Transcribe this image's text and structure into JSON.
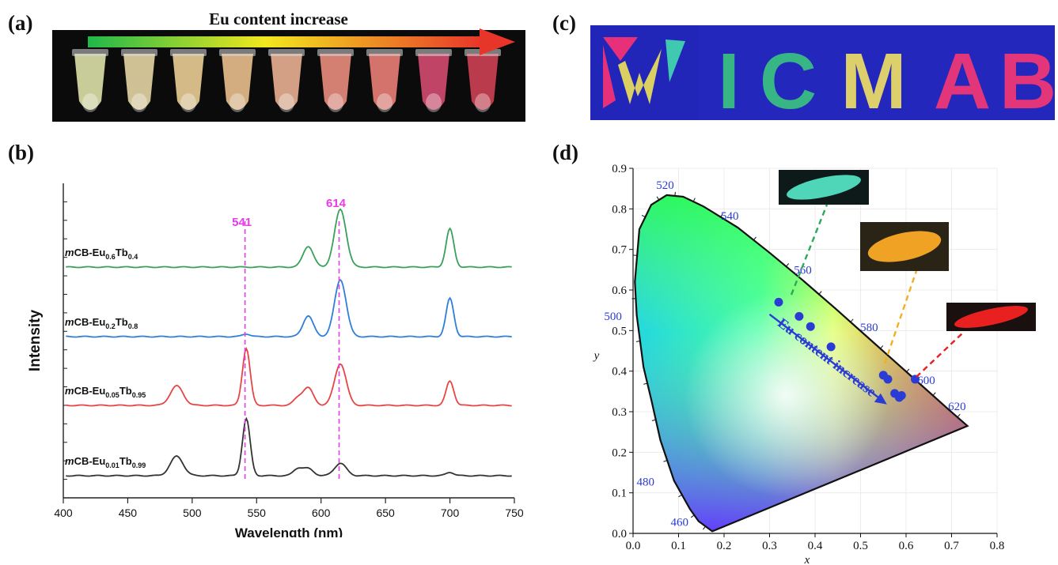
{
  "panels": {
    "a": {
      "label": "(a)",
      "arrow_text": "Eu content increase"
    },
    "b": {
      "label": "(b)"
    },
    "c": {
      "label": "(c)",
      "letters": [
        "I",
        "C",
        "M",
        "A",
        "B"
      ]
    },
    "d": {
      "label": "(d)",
      "arrow_text": "Eu content increase"
    }
  },
  "chart_data": [
    {
      "type": "line",
      "panel": "b",
      "xlabel": "Wavelength (nm)",
      "ylabel": "Intensity",
      "xlim": [
        400,
        750
      ],
      "xticks": [
        400,
        450,
        500,
        550,
        600,
        650,
        700,
        750
      ],
      "reference_lines": [
        {
          "x": 541,
          "label": "541",
          "color": "#e83ce8"
        },
        {
          "x": 614,
          "label": "614",
          "color": "#e83ce8"
        }
      ],
      "peaks_nm": [
        488,
        542,
        582,
        590,
        615,
        700
      ],
      "series": [
        {
          "name_base": "CB-Eu",
          "name_prefix": "m",
          "eu": "0.6",
          "tb": "0.4",
          "color": "#3aa05a",
          "peak_heights": [
            0.0,
            0.0,
            0.0,
            0.3,
            0.83,
            0.55
          ]
        },
        {
          "name_base": "CB-Eu",
          "name_prefix": "m",
          "eu": "0.2",
          "tb": "0.8",
          "color": "#2f7fd8",
          "peak_heights": [
            0.0,
            0.04,
            0.0,
            0.3,
            0.82,
            0.55
          ]
        },
        {
          "name_base": "CB-Eu",
          "name_prefix": "m",
          "eu": "0.05",
          "tb": "0.95",
          "color": "#e64545",
          "peak_heights": [
            0.28,
            0.82,
            0.1,
            0.25,
            0.6,
            0.35
          ]
        },
        {
          "name_base": "CB-Eu",
          "name_prefix": "m",
          "eu": "0.01",
          "tb": "0.99",
          "color": "#333333",
          "peak_heights": [
            0.28,
            0.82,
            0.1,
            0.1,
            0.18,
            0.05
          ]
        }
      ]
    },
    {
      "type": "scatter",
      "panel": "d",
      "xlabel": "x",
      "ylabel": "y",
      "xlim": [
        0.0,
        0.8
      ],
      "ylim": [
        0.0,
        0.9
      ],
      "xticks": [
        "0.0",
        "0.1",
        "0.2",
        "0.3",
        "0.4",
        "0.5",
        "0.6",
        "0.7",
        "0.8"
      ],
      "yticks": [
        "0.0",
        "0.1",
        "0.2",
        "0.3",
        "0.4",
        "0.5",
        "0.6",
        "0.7",
        "0.8",
        "0.9"
      ],
      "wavelength_labels": [
        {
          "nm": "460",
          "x": 0.144,
          "y": 0.03
        },
        {
          "nm": "480",
          "x": 0.09,
          "y": 0.13
        },
        {
          "nm": "500",
          "x": 0.008,
          "y": 0.538
        },
        {
          "nm": "520",
          "x": 0.074,
          "y": 0.834
        },
        {
          "nm": "540",
          "x": 0.23,
          "y": 0.754
        },
        {
          "nm": "560",
          "x": 0.373,
          "y": 0.624
        },
        {
          "nm": "580",
          "x": 0.512,
          "y": 0.487
        },
        {
          "nm": "600",
          "x": 0.627,
          "y": 0.372
        },
        {
          "nm": "620",
          "x": 0.691,
          "y": 0.308
        }
      ],
      "points": [
        {
          "x": 0.32,
          "y": 0.57
        },
        {
          "x": 0.365,
          "y": 0.535
        },
        {
          "x": 0.39,
          "y": 0.51
        },
        {
          "x": 0.435,
          "y": 0.46
        },
        {
          "x": 0.55,
          "y": 0.39
        },
        {
          "x": 0.56,
          "y": 0.38
        },
        {
          "x": 0.575,
          "y": 0.345
        },
        {
          "x": 0.585,
          "y": 0.335
        },
        {
          "x": 0.59,
          "y": 0.34
        },
        {
          "x": 0.62,
          "y": 0.38
        }
      ],
      "point_color": "#2b3bd6"
    }
  ]
}
